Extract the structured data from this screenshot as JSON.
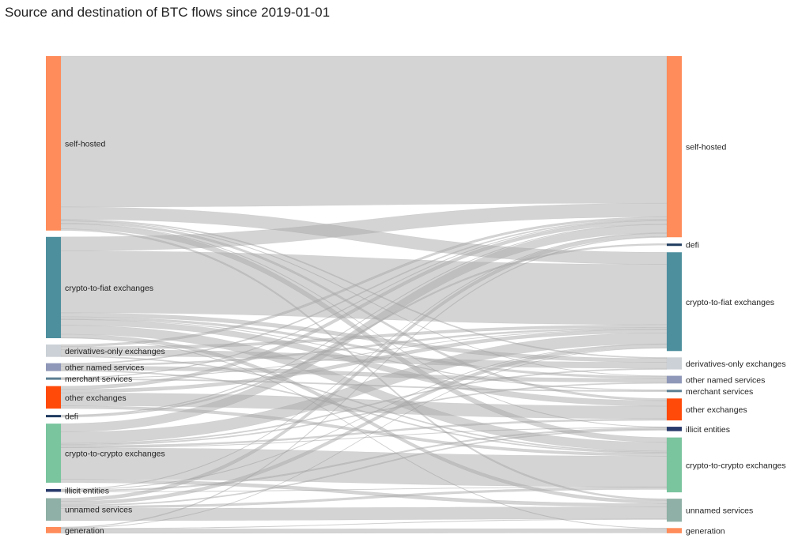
{
  "title": "Source and destination of BTC flows since 2019-01-01",
  "chart_data": {
    "type": "sankey",
    "source_nodes": [
      {
        "id": "s-self-hosted",
        "label": "self-hosted",
        "color": "#ff8c5a",
        "value": 3100
      },
      {
        "id": "s-crypto-to-fiat",
        "label": "crypto-to-fiat exchanges",
        "color": "#4e8f9e",
        "value": 1800
      },
      {
        "id": "s-derivatives",
        "label": "derivatives-only exchanges",
        "color": "#cbd1d6",
        "value": 220
      },
      {
        "id": "s-other-named",
        "label": "other named services",
        "color": "#8f98b8",
        "value": 140
      },
      {
        "id": "s-merchant",
        "label": "merchant services",
        "color": "#5c7f93",
        "value": 30
      },
      {
        "id": "s-other-exchanges",
        "label": "other exchanges",
        "color": "#ff4a0a",
        "value": 400
      },
      {
        "id": "s-defi",
        "label": "defi",
        "color": "#1e3a5f",
        "value": 15
      },
      {
        "id": "s-crypto-to-crypto",
        "label": "crypto-to-crypto exchanges",
        "color": "#7ac49e",
        "value": 1050
      },
      {
        "id": "s-illicit",
        "label": "illicit entities",
        "color": "#283a6b",
        "value": 50
      },
      {
        "id": "s-unnamed",
        "label": "unnamed services",
        "color": "#8fb0a6",
        "value": 400
      },
      {
        "id": "s-generation",
        "label": "generation",
        "color": "#ff8c5a",
        "value": 110
      }
    ],
    "target_nodes": [
      {
        "id": "t-self-hosted",
        "label": "self-hosted",
        "color": "#ff8c5a",
        "value": 3300
      },
      {
        "id": "t-defi",
        "label": "defi",
        "color": "#1e3a5f",
        "value": 15
      },
      {
        "id": "t-crypto-to-fiat",
        "label": "crypto-to-fiat exchanges",
        "color": "#4e8f9e",
        "value": 1800
      },
      {
        "id": "t-derivatives",
        "label": "derivatives-only exchanges",
        "color": "#cbd1d6",
        "value": 220
      },
      {
        "id": "t-other-named",
        "label": "other named services",
        "color": "#8f98b8",
        "value": 140
      },
      {
        "id": "t-merchant",
        "label": "merchant services",
        "color": "#5c7f93",
        "value": 30
      },
      {
        "id": "t-other-exchanges",
        "label": "other exchanges",
        "color": "#ff4a0a",
        "value": 400
      },
      {
        "id": "t-illicit",
        "label": "illicit entities",
        "color": "#283a6b",
        "value": 80
      },
      {
        "id": "t-crypto-to-crypto",
        "label": "crypto-to-crypto exchanges",
        "color": "#7ac49e",
        "value": 1000
      },
      {
        "id": "t-unnamed",
        "label": "unnamed services",
        "color": "#8fb0a6",
        "value": 420
      },
      {
        "id": "t-generation",
        "label": "generation",
        "color": "#ff8c5a",
        "value": 95
      }
    ],
    "flows": [
      {
        "source": "s-self-hosted",
        "target": "t-self-hosted",
        "value": 2680
      },
      {
        "source": "s-self-hosted",
        "target": "t-crypto-to-fiat",
        "value": 220
      },
      {
        "source": "s-self-hosted",
        "target": "t-crypto-to-crypto",
        "value": 90
      },
      {
        "source": "s-self-hosted",
        "target": "t-other-exchanges",
        "value": 40
      },
      {
        "source": "s-self-hosted",
        "target": "t-unnamed",
        "value": 30
      },
      {
        "source": "s-self-hosted",
        "target": "t-derivatives",
        "value": 20
      },
      {
        "source": "s-self-hosted",
        "target": "t-illicit",
        "value": 10
      },
      {
        "source": "s-self-hosted",
        "target": "t-other-named",
        "value": 10
      },
      {
        "source": "s-crypto-to-fiat",
        "target": "t-self-hosted",
        "value": 250
      },
      {
        "source": "s-crypto-to-fiat",
        "target": "t-crypto-to-fiat",
        "value": 1100
      },
      {
        "source": "s-crypto-to-fiat",
        "target": "t-crypto-to-crypto",
        "value": 160
      },
      {
        "source": "s-crypto-to-fiat",
        "target": "t-other-exchanges",
        "value": 100
      },
      {
        "source": "s-crypto-to-fiat",
        "target": "t-derivatives",
        "value": 70
      },
      {
        "source": "s-crypto-to-fiat",
        "target": "t-unnamed",
        "value": 60
      },
      {
        "source": "s-crypto-to-fiat",
        "target": "t-other-named",
        "value": 40
      },
      {
        "source": "s-crypto-to-fiat",
        "target": "t-merchant",
        "value": 10
      },
      {
        "source": "s-crypto-to-fiat",
        "target": "t-generation",
        "value": 10
      },
      {
        "source": "s-derivatives",
        "target": "t-self-hosted",
        "value": 40
      },
      {
        "source": "s-derivatives",
        "target": "t-derivatives",
        "value": 110
      },
      {
        "source": "s-derivatives",
        "target": "t-crypto-to-fiat",
        "value": 50
      },
      {
        "source": "s-derivatives",
        "target": "t-crypto-to-crypto",
        "value": 20
      },
      {
        "source": "s-other-named",
        "target": "t-self-hosted",
        "value": 20
      },
      {
        "source": "s-other-named",
        "target": "t-other-named",
        "value": 70
      },
      {
        "source": "s-other-named",
        "target": "t-crypto-to-fiat",
        "value": 30
      },
      {
        "source": "s-other-named",
        "target": "t-crypto-to-crypto",
        "value": 20
      },
      {
        "source": "s-merchant",
        "target": "t-self-hosted",
        "value": 10
      },
      {
        "source": "s-merchant",
        "target": "t-merchant",
        "value": 15
      },
      {
        "source": "s-merchant",
        "target": "t-crypto-to-fiat",
        "value": 5
      },
      {
        "source": "s-other-exchanges",
        "target": "t-self-hosted",
        "value": 60
      },
      {
        "source": "s-other-exchanges",
        "target": "t-other-exchanges",
        "value": 230
      },
      {
        "source": "s-other-exchanges",
        "target": "t-crypto-to-fiat",
        "value": 60
      },
      {
        "source": "s-other-exchanges",
        "target": "t-crypto-to-crypto",
        "value": 50
      },
      {
        "source": "s-defi",
        "target": "t-defi",
        "value": 10
      },
      {
        "source": "s-defi",
        "target": "t-self-hosted",
        "value": 5
      },
      {
        "source": "s-crypto-to-crypto",
        "target": "t-self-hosted",
        "value": 150
      },
      {
        "source": "s-crypto-to-crypto",
        "target": "t-crypto-to-crypto",
        "value": 560
      },
      {
        "source": "s-crypto-to-crypto",
        "target": "t-crypto-to-fiat",
        "value": 200
      },
      {
        "source": "s-crypto-to-crypto",
        "target": "t-other-exchanges",
        "value": 30
      },
      {
        "source": "s-crypto-to-crypto",
        "target": "t-unnamed",
        "value": 60
      },
      {
        "source": "s-crypto-to-crypto",
        "target": "t-derivatives",
        "value": 20
      },
      {
        "source": "s-crypto-to-crypto",
        "target": "t-other-named",
        "value": 20
      },
      {
        "source": "s-crypto-to-crypto",
        "target": "t-illicit",
        "value": 10
      },
      {
        "source": "s-illicit",
        "target": "t-illicit",
        "value": 25
      },
      {
        "source": "s-illicit",
        "target": "t-self-hosted",
        "value": 10
      },
      {
        "source": "s-illicit",
        "target": "t-crypto-to-fiat",
        "value": 10
      },
      {
        "source": "s-illicit",
        "target": "t-crypto-to-crypto",
        "value": 5
      },
      {
        "source": "s-unnamed",
        "target": "t-self-hosted",
        "value": 60
      },
      {
        "source": "s-unnamed",
        "target": "t-unnamed",
        "value": 220
      },
      {
        "source": "s-unnamed",
        "target": "t-crypto-to-fiat",
        "value": 60
      },
      {
        "source": "s-unnamed",
        "target": "t-crypto-to-crypto",
        "value": 40
      },
      {
        "source": "s-unnamed",
        "target": "t-illicit",
        "value": 20
      },
      {
        "source": "s-generation",
        "target": "t-self-hosted",
        "value": 15
      },
      {
        "source": "s-generation",
        "target": "t-generation",
        "value": 80
      },
      {
        "source": "s-generation",
        "target": "t-crypto-to-fiat",
        "value": 5
      },
      {
        "source": "s-generation",
        "target": "t-unnamed",
        "value": 10
      }
    ]
  }
}
